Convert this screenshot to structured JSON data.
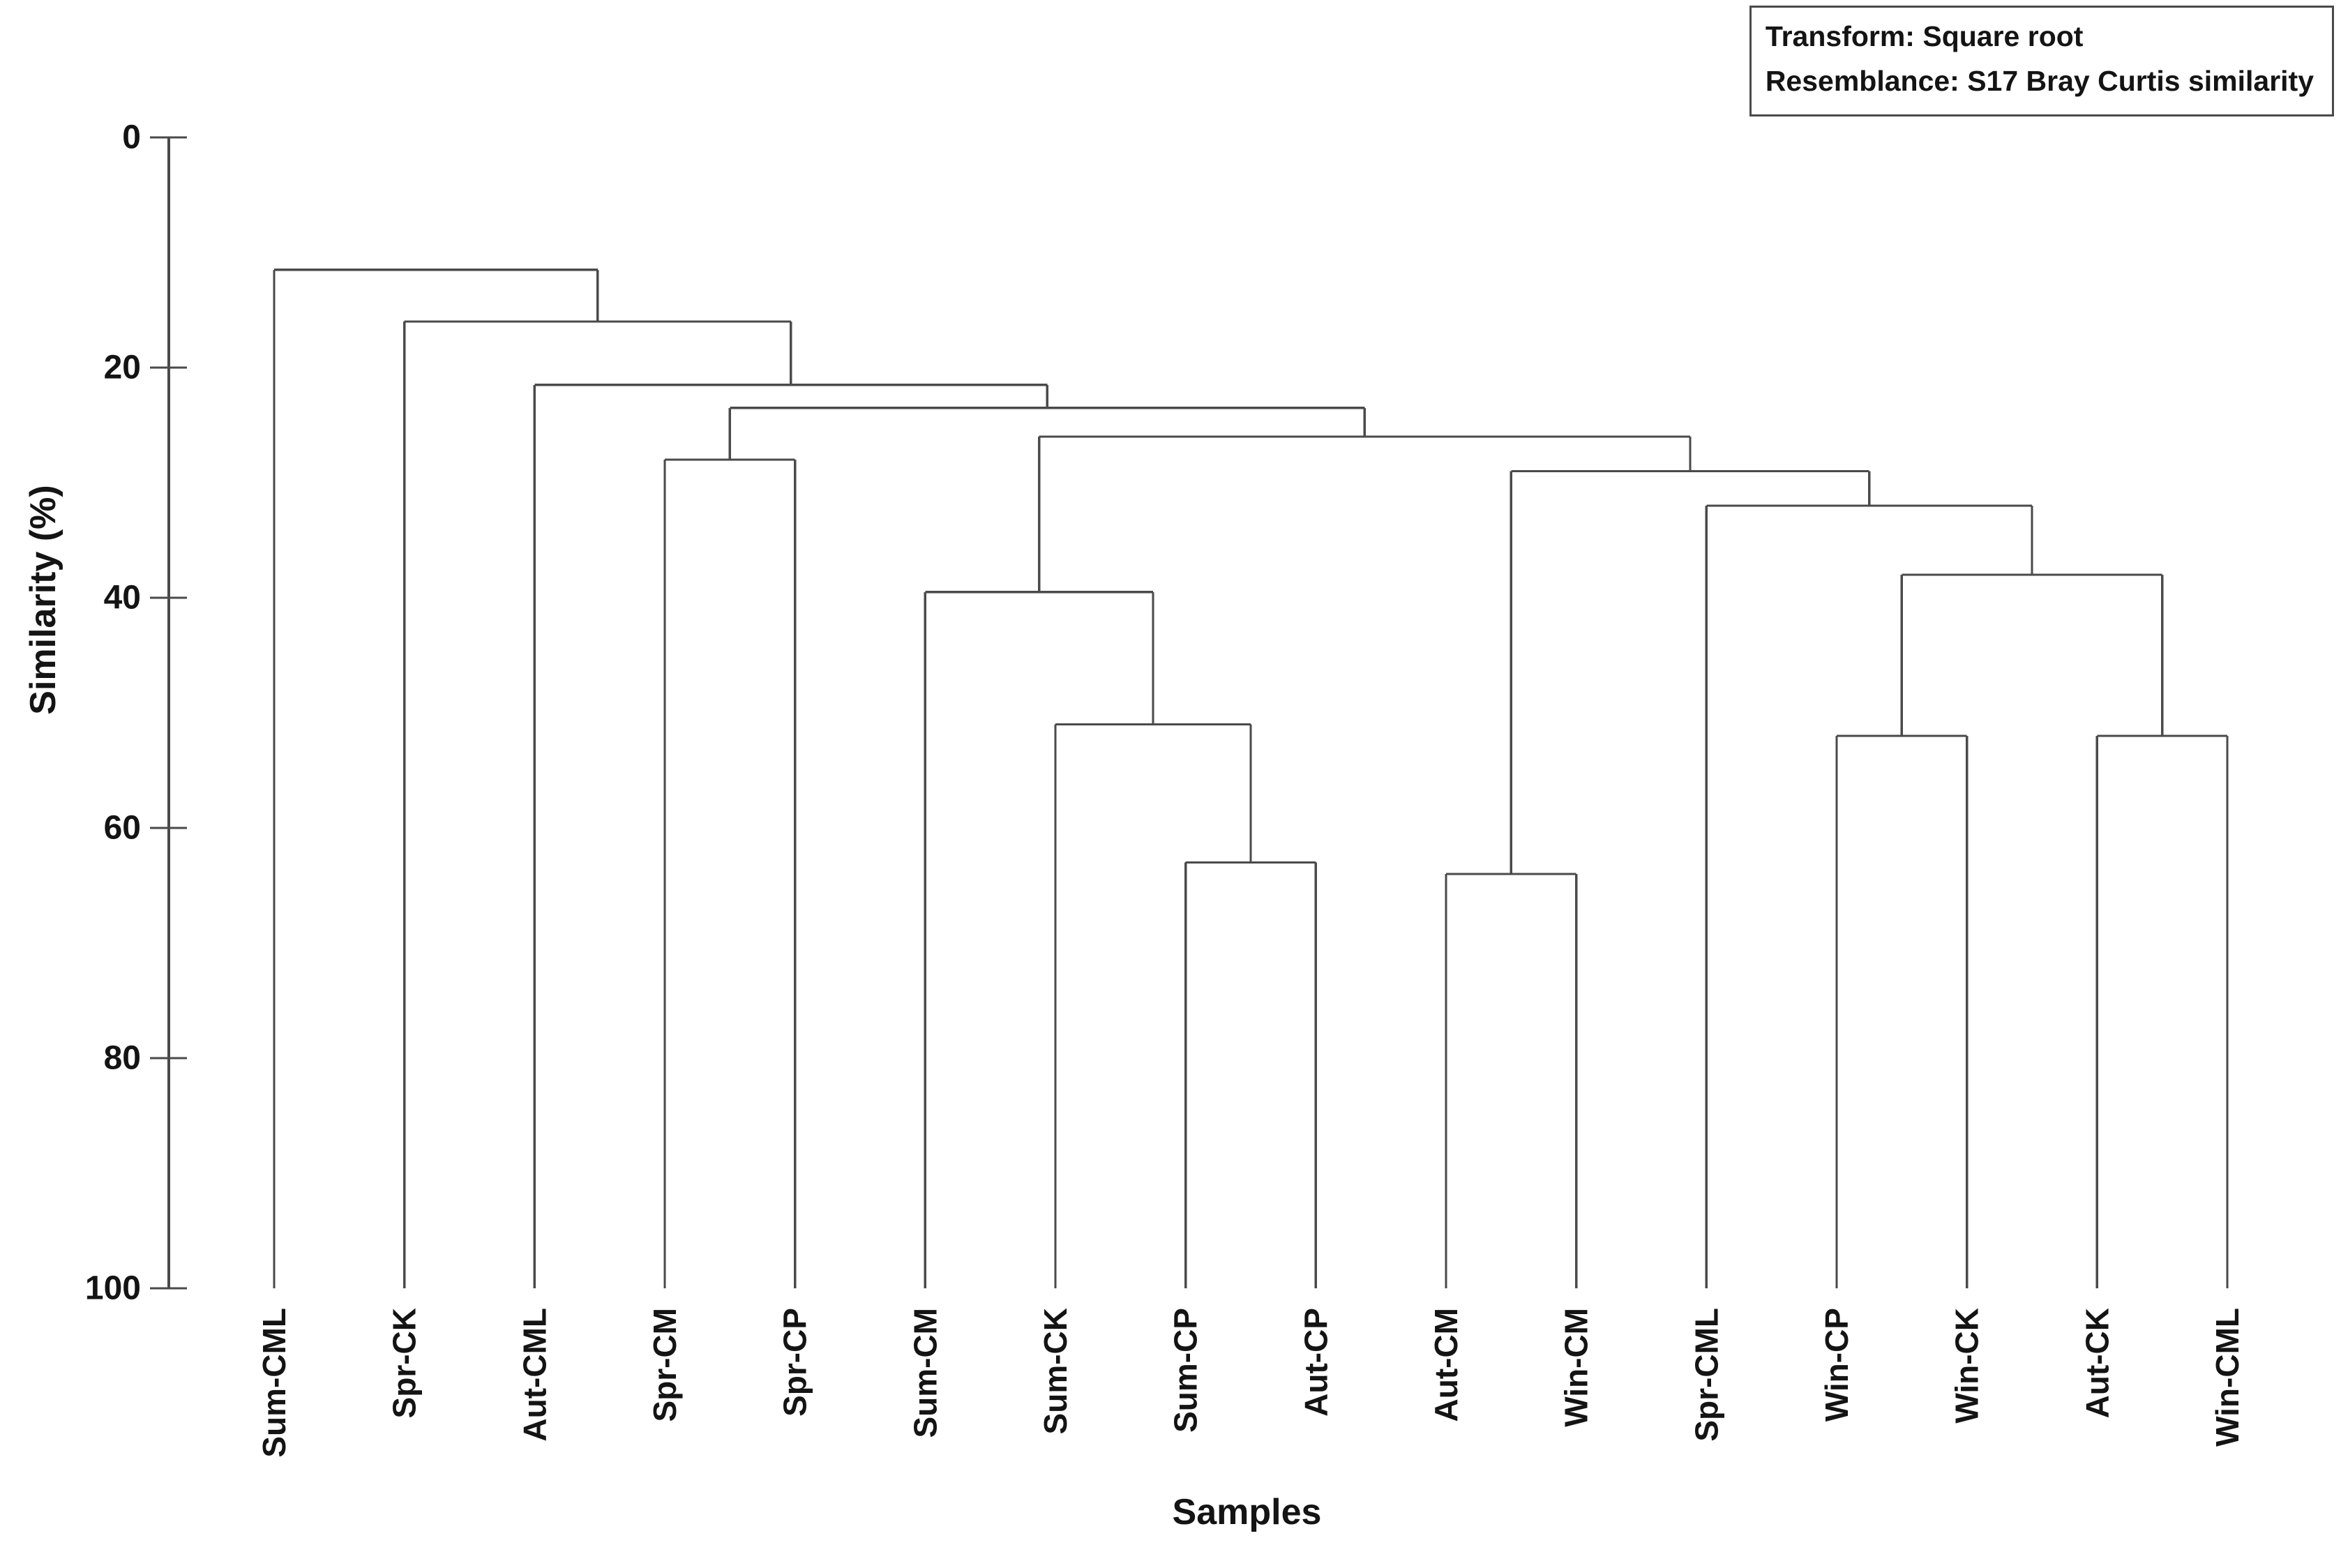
{
  "chart_data": {
    "type": "dendrogram",
    "orientation": "root-top",
    "title": "",
    "xlabel": "Samples",
    "ylabel": "Similarity (%)",
    "ylim": [
      0,
      100
    ],
    "yticks": [
      0,
      20,
      40,
      60,
      80,
      100
    ],
    "grid": false,
    "annotation_box": {
      "line1": "Transform: Square root",
      "line2": "Resemblance: S17 Bray Curtis similarity"
    },
    "leaves": [
      "Sum-CML",
      "Spr-CK",
      "Aut-CML",
      "Spr-CM",
      "Spr-CP",
      "Sum-CM",
      "Sum-CK",
      "Sum-CP",
      "Aut-CP",
      "Aut-CM",
      "Win-CM",
      "Spr-CML",
      "Win-CP",
      "Win-CK",
      "Aut-CK",
      "Win-CML"
    ],
    "linkage": {
      "join": 11.5,
      "children": [
        "Sum-CML",
        {
          "join": 16,
          "children": [
            "Spr-CK",
            {
              "join": 21.5,
              "children": [
                "Aut-CML",
                {
                  "join": 23.5,
                  "children": [
                    {
                      "join": 28,
                      "children": [
                        "Spr-CM",
                        "Spr-CP"
                      ]
                    },
                    {
                      "join": 26,
                      "children": [
                        {
                          "join": 39.5,
                          "children": [
                            "Sum-CM",
                            {
                              "join": 51,
                              "children": [
                                "Sum-CK",
                                {
                                  "join": 63,
                                  "children": [
                                    "Sum-CP",
                                    "Aut-CP"
                                  ]
                                }
                              ]
                            }
                          ]
                        },
                        {
                          "join": 29,
                          "children": [
                            {
                              "join": 64,
                              "children": [
                                "Aut-CM",
                                "Win-CM"
                              ]
                            },
                            {
                              "join": 32,
                              "children": [
                                "Spr-CML",
                                {
                                  "join": 38,
                                  "children": [
                                    {
                                      "join": 52,
                                      "children": [
                                        "Win-CP",
                                        "Win-CK"
                                      ]
                                    },
                                    {
                                      "join": 52,
                                      "children": [
                                        "Aut-CK",
                                        "Win-CML"
                                      ]
                                    }
                                  ]
                                }
                              ]
                            }
                          ]
                        }
                      ]
                    }
                  ]
                }
              ]
            }
          ]
        }
      ]
    },
    "colors": {
      "line": "#4a4a4a",
      "text": "#141414",
      "background": "#ffffff"
    }
  }
}
